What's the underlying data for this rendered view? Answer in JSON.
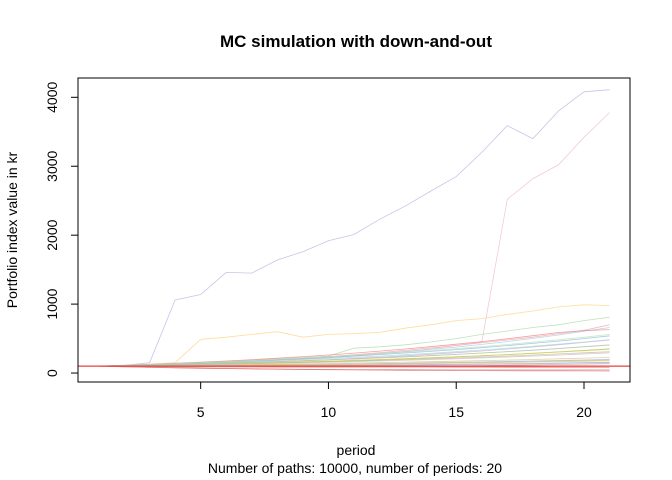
{
  "chart_data": {
    "type": "line",
    "title": "MC simulation with down-and-out",
    "xlabel": "period",
    "ylabel": "Portfolio index value in kr",
    "subtitle": "Number of paths: 10000, number of periods: 20",
    "xlim": [
      0.2,
      21.8
    ],
    "ylim": [
      -130,
      4280
    ],
    "x_ticks": [
      5,
      10,
      15,
      20
    ],
    "y_ticks": [
      0,
      1000,
      2000,
      3000,
      4000
    ],
    "reference_line": {
      "y": 100,
      "color": "#e8403a"
    },
    "grid": false,
    "x": [
      1,
      2,
      3,
      4,
      5,
      6,
      7,
      8,
      9,
      10,
      11,
      12,
      13,
      14,
      15,
      16,
      17,
      18,
      19,
      20,
      21
    ],
    "series": [
      {
        "color": "#b3b3e0",
        "values": [
          100,
          110,
          150,
          1060,
          1140,
          1460,
          1450,
          1640,
          1760,
          1920,
          2010,
          2230,
          2420,
          2640,
          2850,
          3200,
          3590,
          3400,
          3800,
          4080,
          4110
        ]
      },
      {
        "color": "#f0b8c8",
        "values": [
          100,
          110,
          120,
          130,
          140,
          150,
          160,
          180,
          200,
          220,
          250,
          280,
          310,
          350,
          400,
          450,
          2520,
          2820,
          3020,
          3420,
          3780
        ]
      },
      {
        "color": "#ffd27a",
        "values": [
          100,
          110,
          130,
          150,
          490,
          520,
          560,
          600,
          520,
          560,
          570,
          590,
          650,
          700,
          760,
          790,
          850,
          900,
          960,
          990,
          980
        ]
      },
      {
        "color": "#a8d8a8",
        "values": [
          100,
          112,
          125,
          140,
          155,
          170,
          185,
          205,
          225,
          245,
          360,
          380,
          410,
          450,
          500,
          560,
          610,
          660,
          700,
          760,
          810
        ]
      },
      {
        "color": "#f2a7a7",
        "values": [
          100,
          108,
          118,
          130,
          145,
          160,
          175,
          195,
          215,
          240,
          265,
          295,
          330,
          365,
          400,
          440,
          480,
          520,
          570,
          620,
          700
        ]
      },
      {
        "color": "#9ec9e8",
        "values": [
          100,
          110,
          120,
          132,
          145,
          160,
          176,
          194,
          213,
          234,
          258,
          283,
          312,
          343,
          377,
          415,
          456,
          502,
          552,
          607,
          660
        ]
      },
      {
        "color": "#c9a8e0",
        "values": [
          100,
          105,
          112,
          120,
          130,
          140,
          150,
          165,
          180,
          195,
          212,
          230,
          250,
          272,
          295,
          320,
          348,
          378,
          410,
          445,
          480
        ]
      },
      {
        "color": "#f5c6a0",
        "values": [
          100,
          103,
          108,
          114,
          120,
          127,
          134,
          142,
          150,
          159,
          168,
          178,
          188,
          199,
          210,
          222,
          235,
          248,
          262,
          277,
          292
        ]
      },
      {
        "color": "#7fb87f",
        "values": [
          100,
          104,
          110,
          116,
          123,
          131,
          139,
          148,
          158,
          168,
          180,
          192,
          205,
          219,
          234,
          250,
          268,
          287,
          307,
          328,
          350
        ]
      },
      {
        "color": "#e07a7a",
        "values": [
          100,
          98,
          97,
          96,
          95,
          94,
          93,
          92,
          91,
          90,
          89,
          88,
          87,
          86,
          85,
          84,
          83,
          82,
          81,
          80,
          79
        ]
      },
      {
        "color": "#d46a6a",
        "values": [
          100,
          92,
          85,
          78,
          72,
          66,
          61,
          56,
          52,
          48,
          45,
          42,
          40,
          38,
          36,
          35,
          34,
          33,
          32,
          31,
          30
        ]
      },
      {
        "color": "#8fbf9f",
        "values": [
          100,
          101,
          103,
          105,
          108,
          111,
          114,
          118,
          122,
          126,
          130,
          135,
          140,
          145,
          151,
          157,
          163,
          170,
          177,
          184,
          192
        ]
      },
      {
        "color": "#e8b4d8",
        "values": [
          100,
          107,
          115,
          124,
          133,
          143,
          154,
          165,
          177,
          190,
          204,
          219,
          235,
          252,
          270,
          290,
          311,
          333,
          357,
          383,
          410
        ]
      },
      {
        "color": "#b0c4de",
        "values": [
          100,
          102,
          104,
          107,
          110,
          113,
          117,
          121,
          125,
          129,
          134,
          139,
          144,
          150,
          156,
          162,
          169,
          176,
          183,
          191,
          199
        ]
      },
      {
        "color": "#f4d03f",
        "values": [
          100,
          106,
          113,
          120,
          128,
          136,
          145,
          154,
          164,
          175,
          186,
          198,
          211,
          224,
          238,
          253,
          269,
          286,
          304,
          323,
          343
        ]
      },
      {
        "color": "#a3d9c9",
        "values": [
          100,
          109,
          119,
          130,
          141,
          153,
          166,
          180,
          195,
          211,
          228,
          246,
          266,
          287,
          310,
          334,
          360,
          388,
          418,
          450,
          485
        ]
      },
      {
        "color": "#c0c0c0",
        "values": [
          100,
          100,
          101,
          102,
          103,
          104,
          106,
          108,
          110,
          112,
          114,
          117,
          120,
          123,
          126,
          129,
          133,
          137,
          141,
          145,
          150
        ]
      },
      {
        "color": "#f08080",
        "values": [
          100,
          112,
          126,
          141,
          157,
          175,
          194,
          215,
          238,
          262,
          289,
          318,
          349,
          382,
          418,
          456,
          497,
          541,
          588,
          615,
          630
        ]
      },
      {
        "color": "#90a0d8",
        "values": [
          100,
          99,
          99,
          99,
          100,
          101,
          102,
          104,
          106,
          108,
          111,
          114,
          117,
          121,
          125,
          129,
          134,
          139,
          144,
          150,
          156
        ]
      },
      {
        "color": "#d8c080",
        "values": [
          100,
          103,
          106,
          110,
          114,
          118,
          123,
          128,
          133,
          139,
          145,
          151,
          158,
          165,
          172,
          180,
          188,
          197,
          206,
          216,
          226
        ]
      },
      {
        "color": "#ea9999",
        "values": [
          100,
          95,
          92,
          90,
          88,
          87,
          86,
          85,
          85,
          85,
          85,
          86,
          87,
          88,
          89,
          90,
          92,
          94,
          96,
          98,
          100
        ]
      },
      {
        "color": "#9fd09f",
        "values": [
          100,
          108,
          116,
          125,
          134,
          144,
          155,
          166,
          178,
          191,
          205,
          220,
          236,
          253,
          271,
          290,
          310,
          332,
          355,
          380,
          406
        ]
      },
      {
        "color": "#c8a0a0",
        "values": [
          100,
          96,
          93,
          91,
          89,
          88,
          88,
          88,
          89,
          90,
          92,
          94,
          97,
          100,
          104,
          108,
          113,
          118,
          124,
          130,
          137
        ]
      },
      {
        "color": "#e6c0e6",
        "values": [
          100,
          104,
          109,
          114,
          120,
          126,
          133,
          140,
          148,
          156,
          165,
          174,
          184,
          195,
          206,
          218,
          231,
          245,
          260,
          276,
          293
        ]
      },
      {
        "color": "#88b8d8",
        "values": [
          100,
          110,
          121,
          133,
          146,
          160,
          175,
          191,
          208,
          226,
          246,
          267,
          290,
          314,
          340,
          368,
          398,
          430,
          464,
          500,
          540
        ]
      },
      {
        "color": "#f0c060",
        "values": [
          100,
          101,
          102,
          104,
          106,
          108,
          111,
          114,
          117,
          120,
          124,
          128,
          132,
          137,
          142,
          147,
          153,
          159,
          165,
          172,
          179
        ]
      },
      {
        "color": "#b8e0b8",
        "values": [
          100,
          111,
          123,
          136,
          150,
          165,
          181,
          198,
          216,
          235,
          256,
          278,
          302,
          327,
          354,
          383,
          414,
          447,
          482,
          519,
          560
        ]
      },
      {
        "color": "#d0d0f0",
        "values": [
          100,
          98,
          97,
          97,
          97,
          98,
          99,
          100,
          102,
          104,
          106,
          109,
          112,
          115,
          119,
          123,
          127,
          132,
          137,
          142,
          148
        ]
      },
      {
        "color": "#e07070",
        "values": [
          100,
          90,
          82,
          75,
          69,
          64,
          60,
          57,
          54,
          52,
          50,
          49,
          48,
          47,
          46,
          46,
          45,
          45,
          45,
          45,
          45
        ]
      },
      {
        "color": "#a0c8a0",
        "values": [
          100,
          105,
          111,
          117,
          124,
          131,
          139,
          147,
          156,
          165,
          175,
          185,
          196,
          208,
          220,
          233,
          247,
          262,
          277,
          293,
          310
        ]
      }
    ]
  }
}
